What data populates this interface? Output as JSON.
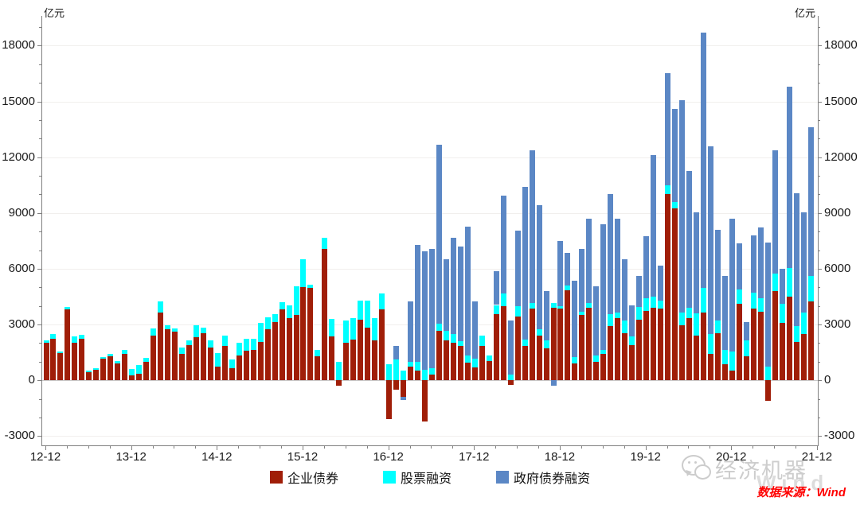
{
  "footer": {
    "source_text": "数据来源：Wind"
  },
  "watermark": {
    "text": "经济机器",
    "wind_text": "Wind"
  },
  "colors": {
    "corp": "#A01E08",
    "equity": "#00FFFF",
    "gov": "#5B87C5",
    "axis_line": "#808080",
    "grid": "#F1EFED",
    "zero_line": "#C9C9C9",
    "source_red": "#FF0000",
    "watermark_gray": "#CDCDCD"
  },
  "chart_data": {
    "type": "bar",
    "stacked": true,
    "title": "",
    "ylabel_left": "亿元",
    "ylabel_right": "亿元",
    "ylim": [
      -3500,
      19600
    ],
    "grid": "horizontal-light",
    "legend_position": "bottom",
    "y_axis": {
      "tick_label_values": [
        18000,
        15000,
        12000,
        9000,
        6000,
        3000,
        0,
        -3000
      ],
      "minor_step": 1000,
      "major_step": 3000
    },
    "x_axis": {
      "labels": [
        "12-12",
        "13-12",
        "14-12",
        "15-12",
        "16-12",
        "17-12",
        "18-12",
        "19-12",
        "20-12",
        "21-12"
      ],
      "label_month_indices": [
        0,
        12,
        24,
        36,
        48,
        60,
        72,
        84,
        96,
        108
      ],
      "minor_month_step": 3
    },
    "categories": [
      "2012-12",
      "2013-01",
      "2013-02",
      "2013-03",
      "2013-04",
      "2013-05",
      "2013-06",
      "2013-07",
      "2013-08",
      "2013-09",
      "2013-10",
      "2013-11",
      "2013-12",
      "2014-01",
      "2014-02",
      "2014-03",
      "2014-04",
      "2014-05",
      "2014-06",
      "2014-07",
      "2014-08",
      "2014-09",
      "2014-10",
      "2014-11",
      "2014-12",
      "2015-01",
      "2015-02",
      "2015-03",
      "2015-04",
      "2015-05",
      "2015-06",
      "2015-07",
      "2015-08",
      "2015-09",
      "2015-10",
      "2015-11",
      "2015-12",
      "2016-01",
      "2016-02",
      "2016-03",
      "2016-04",
      "2016-05",
      "2016-06",
      "2016-07",
      "2016-08",
      "2016-09",
      "2016-10",
      "2016-11",
      "2016-12",
      "2017-01",
      "2017-02",
      "2017-03",
      "2017-04",
      "2017-05",
      "2017-06",
      "2017-07",
      "2017-08",
      "2017-09",
      "2017-10",
      "2017-11",
      "2017-12",
      "2018-01",
      "2018-02",
      "2018-03",
      "2018-04",
      "2018-05",
      "2018-06",
      "2018-07",
      "2018-08",
      "2018-09",
      "2018-10",
      "2018-11",
      "2018-12",
      "2019-01",
      "2019-02",
      "2019-03",
      "2019-04",
      "2019-05",
      "2019-06",
      "2019-07",
      "2019-08",
      "2019-09",
      "2019-10",
      "2019-11",
      "2019-12",
      "2020-01",
      "2020-02",
      "2020-03",
      "2020-04",
      "2020-05",
      "2020-06",
      "2020-07",
      "2020-08",
      "2020-09",
      "2020-10",
      "2020-11",
      "2020-12",
      "2021-01",
      "2021-02",
      "2021-03",
      "2021-04",
      "2021-05",
      "2021-06",
      "2021-07",
      "2021-08",
      "2021-09",
      "2021-10",
      "2021-11"
    ],
    "series": [
      {
        "name": "企业债券",
        "color": "#A01E08",
        "values": [
          2000,
          2250,
          1450,
          3800,
          2000,
          2250,
          450,
          550,
          1150,
          1300,
          900,
          1400,
          250,
          350,
          1000,
          2400,
          3650,
          2750,
          2600,
          1400,
          1900,
          2300,
          2550,
          1750,
          750,
          1850,
          650,
          1350,
          1600,
          1650,
          2050,
          2750,
          3150,
          3800,
          3350,
          3500,
          5000,
          4950,
          1300,
          7050,
          2350,
          -300,
          2000,
          2200,
          3250,
          2850,
          2150,
          3800,
          -2100,
          -500,
          -900,
          750,
          500,
          -2200,
          300,
          2650,
          2150,
          2000,
          1850,
          950,
          700,
          1850,
          1050,
          3550,
          4000,
          -250,
          3450,
          1850,
          3850,
          2400,
          1700,
          3900,
          3850,
          4850,
          900,
          3500,
          3900,
          1000,
          1400,
          2900,
          3350,
          2550,
          1900,
          3250,
          3750,
          3900,
          3850,
          10000,
          9250,
          2950,
          3350,
          2400,
          3650,
          1400,
          2550,
          850,
          500,
          4100,
          1300,
          3850,
          3700,
          -1100,
          4800,
          3100,
          4500,
          2050,
          2500,
          4250
        ]
      },
      {
        "name": "股票融资",
        "color": "#00FFFF",
        "values": [
          150,
          250,
          100,
          150,
          350,
          200,
          50,
          100,
          100,
          100,
          150,
          250,
          350,
          450,
          200,
          400,
          600,
          200,
          200,
          350,
          250,
          650,
          300,
          400,
          700,
          550,
          450,
          650,
          650,
          600,
          1050,
          650,
          400,
          400,
          700,
          1550,
          1500,
          200,
          350,
          600,
          950,
          1000,
          1200,
          1150,
          1050,
          1450,
          1200,
          850,
          850,
          1100,
          500,
          250,
          500,
          550,
          350,
          400,
          500,
          500,
          250,
          400,
          450,
          550,
          300,
          500,
          650,
          300,
          550,
          350,
          300,
          350,
          450,
          250,
          150,
          250,
          350,
          200,
          250,
          350,
          250,
          650,
          300,
          650,
          450,
          700,
          650,
          600,
          450,
          500,
          350,
          700,
          550,
          1200,
          1300,
          1100,
          650,
          800,
          1050,
          800,
          850,
          850,
          700,
          750,
          950,
          1000,
          1550,
          850,
          1150,
          1350
        ]
      },
      {
        "name": "政府债券融资",
        "color": "#5B87C5",
        "values": [
          0,
          0,
          0,
          0,
          0,
          0,
          0,
          0,
          0,
          0,
          0,
          0,
          0,
          0,
          0,
          0,
          0,
          0,
          0,
          0,
          0,
          0,
          0,
          0,
          0,
          0,
          0,
          0,
          0,
          0,
          0,
          0,
          0,
          0,
          0,
          0,
          0,
          0,
          0,
          0,
          0,
          0,
          0,
          0,
          0,
          0,
          0,
          0,
          0,
          750,
          -150,
          3250,
          6300,
          6400,
          6400,
          9600,
          3850,
          5150,
          5100,
          6900,
          3100,
          0,
          0,
          1800,
          5300,
          2900,
          4050,
          8200,
          8200,
          6650,
          2650,
          -300,
          3500,
          1750,
          4100,
          3350,
          4550,
          3700,
          6750,
          6450,
          5050,
          3300,
          1700,
          1650,
          3350,
          7600,
          1850,
          6000,
          5000,
          11400,
          7350,
          5450,
          13750,
          10100,
          4900,
          3950,
          7150,
          2450,
          1000,
          3100,
          3800,
          6650,
          6600,
          1900,
          9750,
          7150,
          5400,
          8000
        ]
      }
    ]
  }
}
